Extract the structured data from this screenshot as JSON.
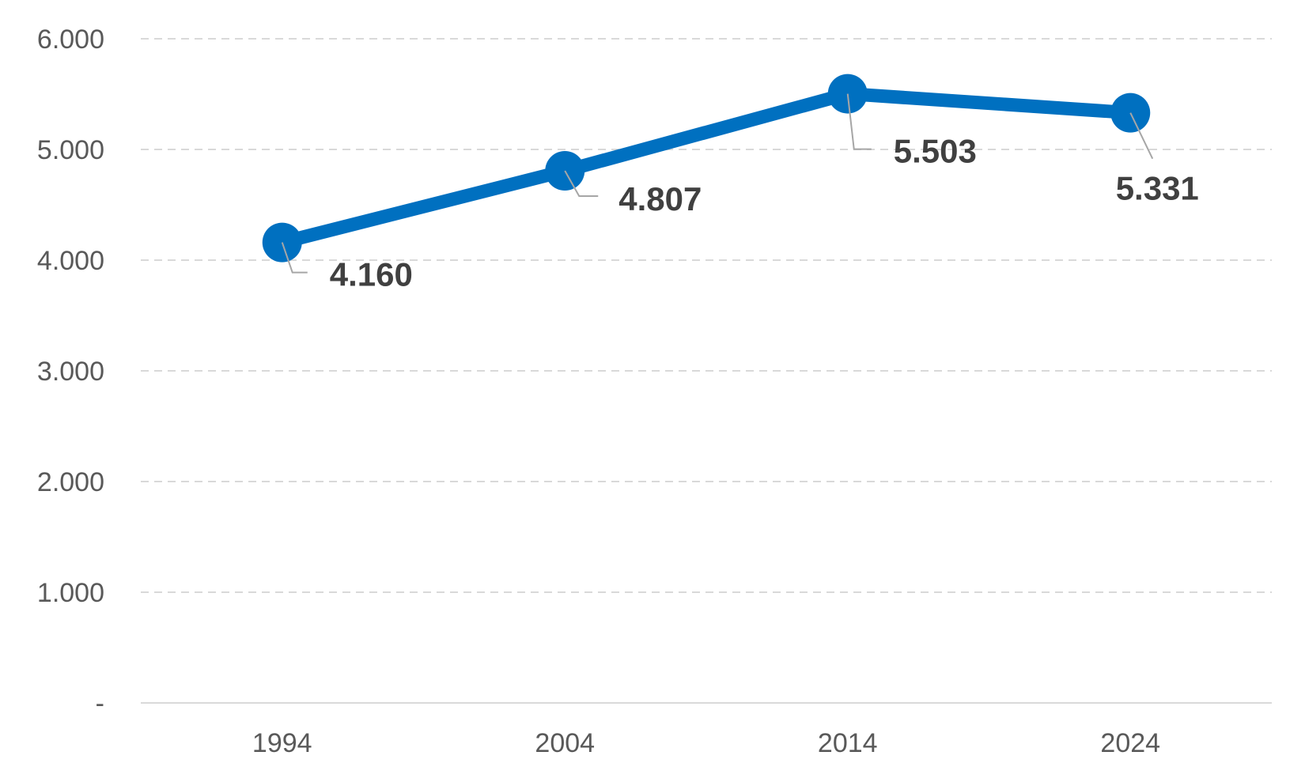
{
  "chart_data": {
    "type": "line",
    "title": "",
    "xlabel": "",
    "ylabel": "",
    "categories": [
      "1994",
      "2004",
      "2014",
      "2024"
    ],
    "series": [
      {
        "values": [
          4160,
          4807,
          5503,
          5331
        ],
        "data_labels": [
          "4.160",
          "4.807",
          "5.503",
          "5.331"
        ],
        "color": "#0070C0"
      }
    ],
    "ylim": [
      0,
      6000
    ],
    "yticks": [
      0,
      1000,
      2000,
      3000,
      4000,
      5000,
      6000
    ],
    "ytick_labels": [
      "-",
      "1.000",
      "2.000",
      "3.000",
      "4.000",
      "5.000",
      "6.000"
    ],
    "grid": true,
    "legend": "none"
  }
}
